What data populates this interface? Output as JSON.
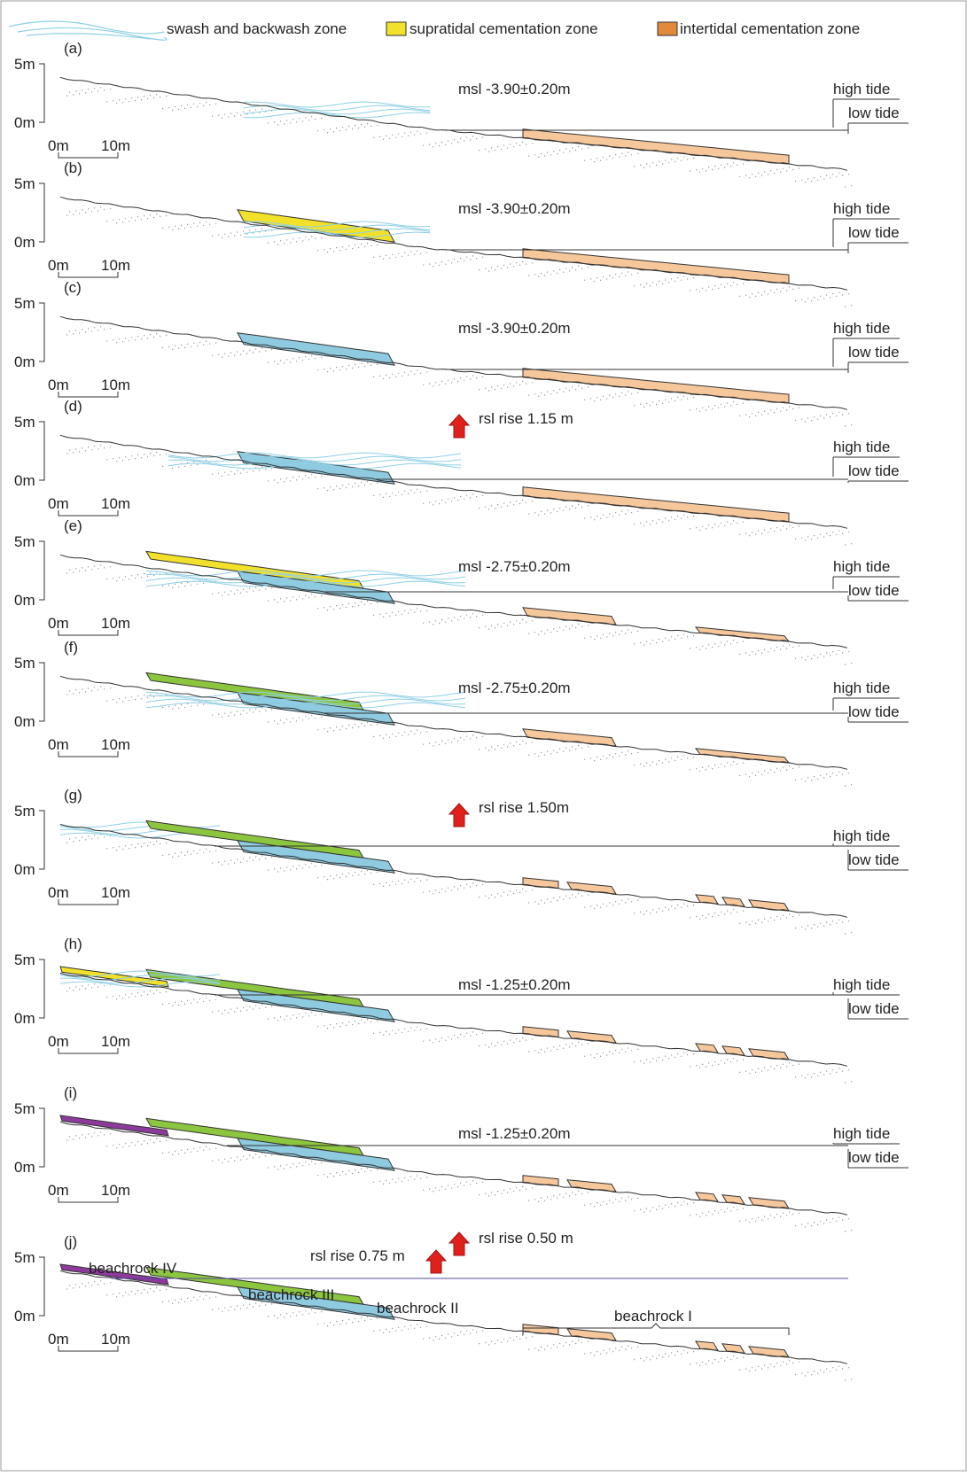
{
  "legend": {
    "items": [
      "swash and backwash zone",
      "supratidal cementation zone",
      "intertidal cementation zone"
    ]
  },
  "panels": [
    {
      "label": "(a)",
      "y_top": "5m",
      "y_bottom": "0m",
      "scale_start": "0m",
      "scale_end": "10m",
      "notes": [
        "msl -3.90±0.20m"
      ],
      "high_tide": "high tide",
      "low_tide": "low tide"
    },
    {
      "label": "(b)",
      "y_top": "5m",
      "y_bottom": "0m",
      "scale_start": "0m",
      "scale_end": "10m",
      "notes": [
        "msl -3.90±0.20m"
      ],
      "high_tide": "high tide",
      "low_tide": "low tide"
    },
    {
      "label": "(c)",
      "y_top": "5m",
      "y_bottom": "0m",
      "scale_start": "0m",
      "scale_end": "10m",
      "notes": [
        "msl -3.90±0.20m"
      ],
      "high_tide": "high tide",
      "low_tide": "low tide"
    },
    {
      "label": "(d)",
      "y_top": "5m",
      "y_bottom": "0m",
      "scale_start": "0m",
      "scale_end": "10m",
      "notes": [
        "rsl rise 1.15 m"
      ],
      "high_tide": "high tide",
      "low_tide": "low tide"
    },
    {
      "label": "(e)",
      "y_top": "5m",
      "y_bottom": "0m",
      "scale_start": "0m",
      "scale_end": "10m",
      "notes": [
        "msl -2.75±0.20m"
      ],
      "high_tide": "high tide",
      "low_tide": "low tide"
    },
    {
      "label": "(f)",
      "y_top": "5m",
      "y_bottom": "0m",
      "scale_start": "0m",
      "scale_end": "10m",
      "notes": [
        "msl -2.75±0.20m"
      ],
      "high_tide": "high tide",
      "low_tide": "low tide"
    },
    {
      "label": "(g)",
      "y_top": "5m",
      "y_bottom": "0m",
      "scale_start": "0m",
      "scale_end": "10m",
      "notes": [
        "rsl rise 1.50m"
      ],
      "high_tide": "high tide",
      "low_tide": "low tide"
    },
    {
      "label": "(h)",
      "y_top": "5m",
      "y_bottom": "0m",
      "scale_start": "0m",
      "scale_end": "10m",
      "notes": [
        "msl -1.25±0.20m"
      ],
      "high_tide": "high tide",
      "low_tide": "low tide"
    },
    {
      "label": "(i)",
      "y_top": "5m",
      "y_bottom": "0m",
      "scale_start": "0m",
      "scale_end": "10m",
      "notes": [
        "msl -1.25±0.20m"
      ],
      "high_tide": "high tide",
      "low_tide": "low tide"
    },
    {
      "label": "(j)",
      "y_top": "5m",
      "y_bottom": "0m",
      "scale_start": "0m",
      "scale_end": "10m",
      "notes": [
        "rsl rise 0.75 m",
        "rsl rise 0.50 m"
      ],
      "beachrocks": [
        "beachrock IV",
        "beachrock III",
        "beachrock II",
        "beachrock I"
      ]
    }
  ]
}
